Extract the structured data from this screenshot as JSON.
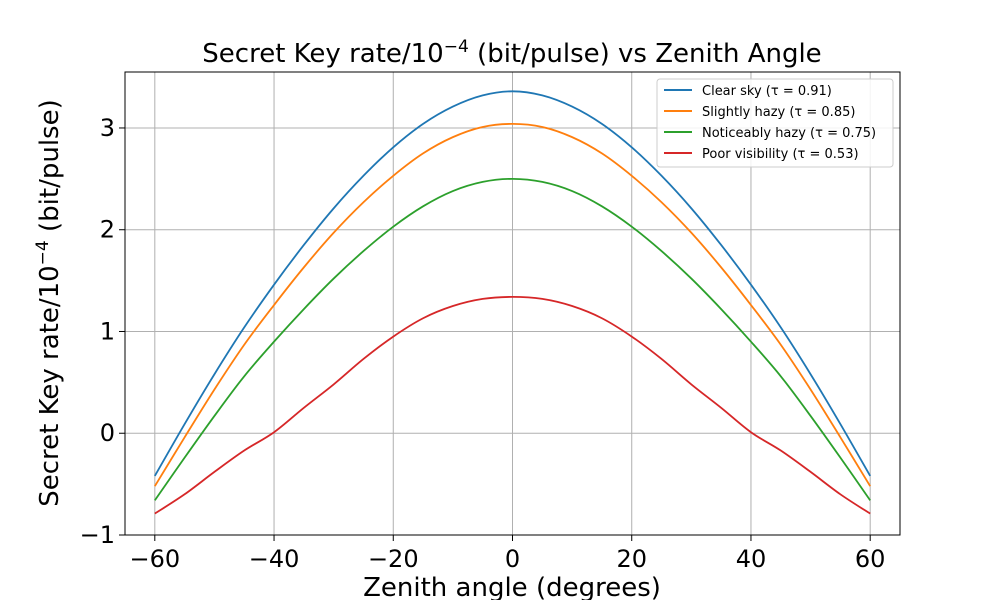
{
  "chart_data": {
    "type": "line",
    "title_main": "Secret Key rate/10",
    "title_sup": "−4",
    "title_tail": " (bit/pulse) vs Zenith Angle",
    "xlabel": "Zenith angle (degrees)",
    "ylabel_main": "Secret Key rate/10",
    "ylabel_sup": "−4",
    "ylabel_tail": " (bit/pulse)",
    "xlim": [
      -65,
      65
    ],
    "ylim": [
      -1,
      3.55
    ],
    "xticks": [
      -60,
      -40,
      -20,
      0,
      20,
      40,
      60
    ],
    "xtick_labels": [
      "−60",
      "−40",
      "−20",
      "0",
      "20",
      "40",
      "60"
    ],
    "yticks": [
      -1,
      0,
      1,
      2,
      3
    ],
    "ytick_labels": [
      "−1",
      "0",
      "1",
      "2",
      "3"
    ],
    "grid": true,
    "legend_position": "top-right",
    "x": [
      -60,
      -55,
      -50,
      -45,
      -40,
      -35,
      -30,
      -25,
      -20,
      -15,
      -10,
      -5,
      0,
      5,
      10,
      15,
      20,
      25,
      30,
      35,
      40,
      45,
      50,
      55,
      60
    ],
    "series": [
      {
        "name": "Clear sky (τ = 0.91)",
        "color": "#1f77b4",
        "values": [
          -0.42,
          0.09,
          0.58,
          1.04,
          1.46,
          1.85,
          2.21,
          2.53,
          2.81,
          3.04,
          3.21,
          3.32,
          3.36,
          3.32,
          3.21,
          3.04,
          2.81,
          2.53,
          2.21,
          1.85,
          1.46,
          1.04,
          0.58,
          0.09,
          -0.42
        ]
      },
      {
        "name": "Slightly hazy (τ = 0.85)",
        "color": "#ff7f0e",
        "values": [
          -0.52,
          -0.04,
          0.43,
          0.87,
          1.26,
          1.63,
          1.97,
          2.27,
          2.53,
          2.75,
          2.91,
          3.01,
          3.04,
          3.01,
          2.91,
          2.75,
          2.53,
          2.27,
          1.97,
          1.63,
          1.26,
          0.87,
          0.43,
          -0.04,
          -0.52
        ]
      },
      {
        "name": "Noticeably hazy (τ = 0.75)",
        "color": "#2ca02c",
        "values": [
          -0.66,
          -0.24,
          0.17,
          0.56,
          0.9,
          1.22,
          1.52,
          1.79,
          2.03,
          2.23,
          2.38,
          2.47,
          2.5,
          2.47,
          2.38,
          2.23,
          2.03,
          1.79,
          1.52,
          1.22,
          0.9,
          0.56,
          0.17,
          -0.24,
          -0.66
        ]
      },
      {
        "name": "Poor visibility (τ = 0.53)",
        "color": "#d62728",
        "values": [
          -0.79,
          -0.6,
          -0.38,
          -0.17,
          0.01,
          0.25,
          0.48,
          0.73,
          0.95,
          1.13,
          1.25,
          1.32,
          1.34,
          1.32,
          1.25,
          1.13,
          0.95,
          0.73,
          0.48,
          0.25,
          0.01,
          -0.17,
          -0.38,
          -0.6,
          -0.79
        ]
      }
    ]
  }
}
